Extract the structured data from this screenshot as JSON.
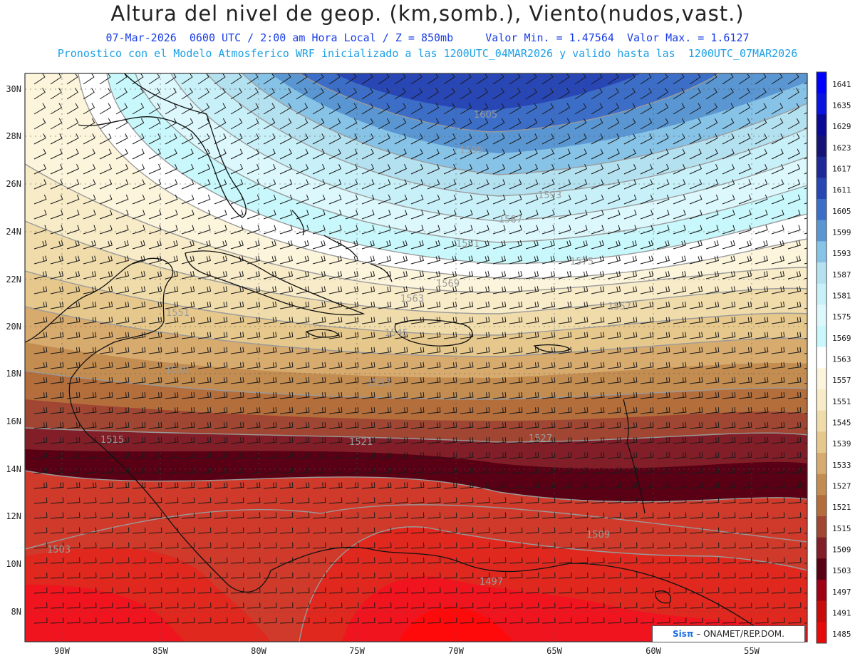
{
  "header": {
    "title": "Altura del nivel de geop. (km,somb.), Viento(nudos,vast.)",
    "line1": "07-Mar-2026  0600 UTC / 2:00 am Hora Local / Z = 850mb     Valor Min. = 1.47564  Valor Max. = 1.6127",
    "line2": "Pronostico con el Modelo Atmosferico WRF inicializado a las 1200UTC_04MAR2026 y valido hasta las  1200UTC_07MAR2026"
  },
  "map": {
    "lat_range": [
      7,
      30.6
    ],
    "lon_range": [
      -92.8,
      -53.9
    ],
    "lat_labels": [
      "30N",
      "28N",
      "26N",
      "24N",
      "22N",
      "20N",
      "18N",
      "16N",
      "14N",
      "12N",
      "10N",
      "8N"
    ],
    "lon_labels": [
      "90W",
      "85W",
      "80W",
      "75W",
      "70W",
      "65W",
      "60W",
      "55W"
    ],
    "contour_labels": [
      "1605",
      "1599",
      "1593",
      "1587",
      "1581",
      "1575",
      "1569",
      "1563",
      "1557",
      "1551",
      "1545",
      "1539",
      "1533",
      "1527",
      "1521",
      "1515",
      "1509",
      "1503",
      "1497"
    ]
  },
  "legend": {
    "levels": [
      "1641",
      "1635",
      "1629",
      "1623",
      "1617",
      "1611",
      "1605",
      "1599",
      "1593",
      "1587",
      "1581",
      "1575",
      "1569",
      "1563",
      "1557",
      "1551",
      "1545",
      "1539",
      "1533",
      "1527",
      "1521",
      "1515",
      "1509",
      "1503",
      "1497",
      "1491",
      "1485"
    ],
    "colors": [
      "#0000ff",
      "#0a14e0",
      "#0a0a96",
      "#141478",
      "#1e2896",
      "#2846b4",
      "#3c6ec8",
      "#5a96d2",
      "#87c3e6",
      "#b4e1f0",
      "#c8f0f8",
      "#dcf8fc",
      "#c8f8fc",
      "#ffffff",
      "#fcf5dc",
      "#f8ebc8",
      "#f0dcaa",
      "#e6c88c",
      "#d7aa6e",
      "#c38c50",
      "#b46e3c",
      "#a04632",
      "#821e28",
      "#5a0014",
      "#a00014",
      "#c80a0a",
      "#e60a0a"
    ]
  },
  "credit": {
    "brand": "Sisπ",
    "text": "– ONAMET/REP.DOM."
  }
}
